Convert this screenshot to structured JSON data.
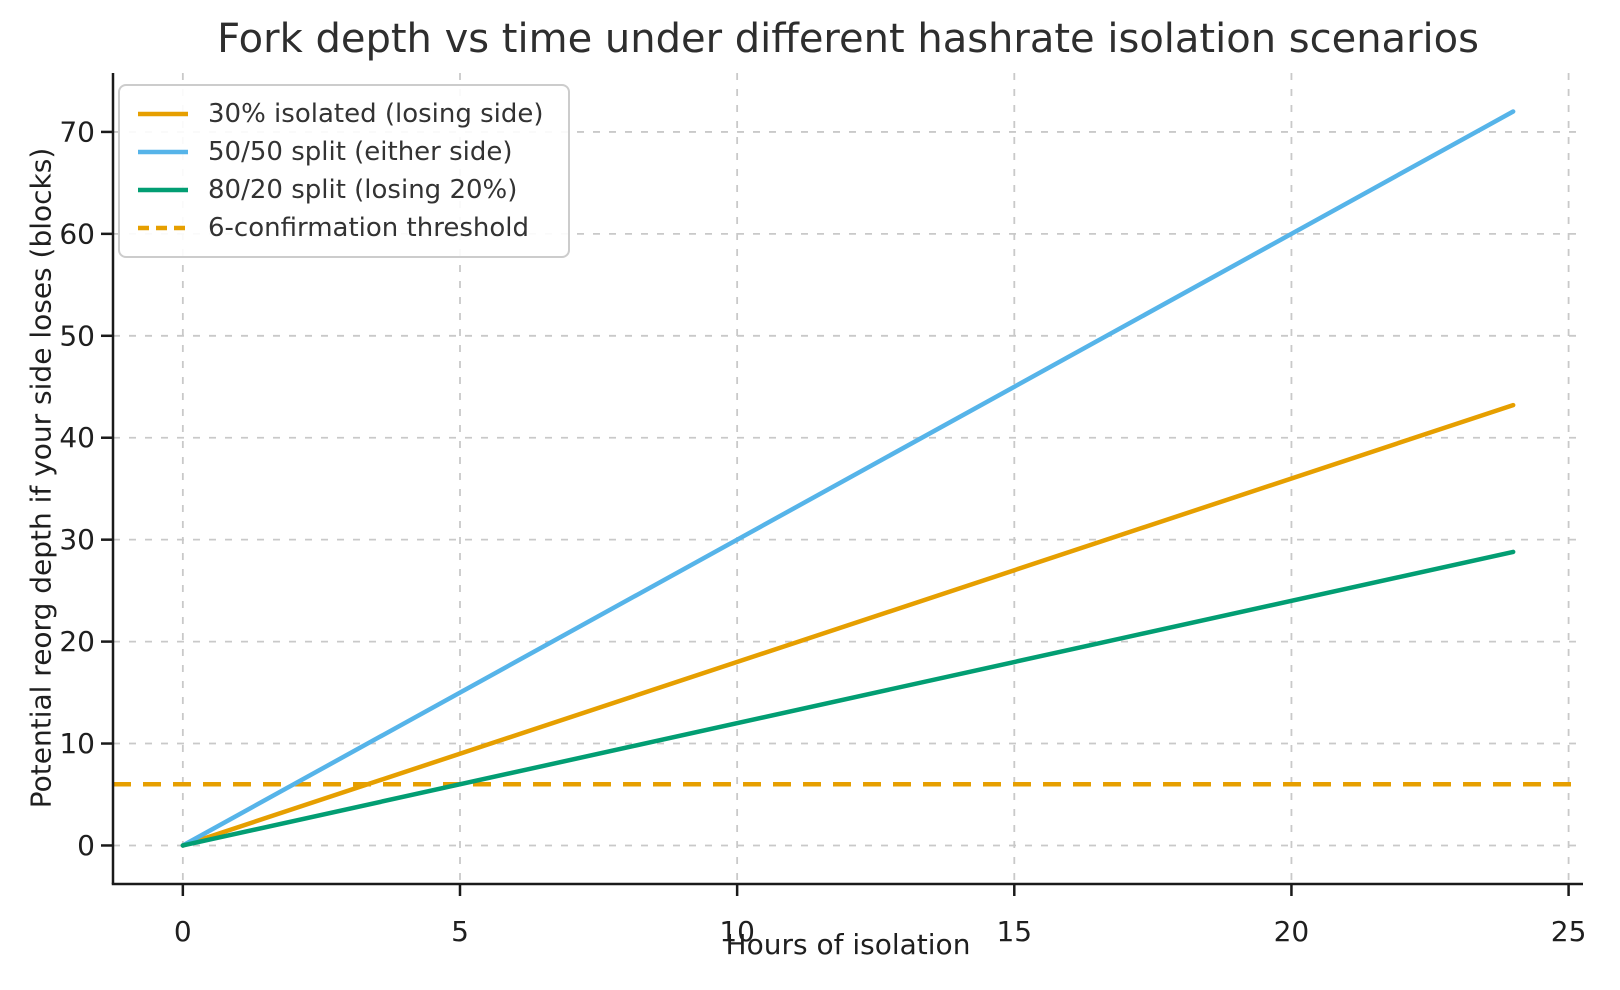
{
  "figure": {
    "background": "#ffffff"
  },
  "chart_data": {
    "type": "line",
    "title": "Fork depth vs time under different hashrate isolation scenarios",
    "xlabel": "Hours of isolation",
    "ylabel": "Potential reorg depth if your side loses (blocks)",
    "xlim": [
      -1.26,
      25.26
    ],
    "ylim": [
      -3.78,
      75.78
    ],
    "xticks": [
      0,
      5,
      10,
      15,
      20,
      25
    ],
    "yticks": [
      0,
      10,
      20,
      30,
      40,
      50,
      60,
      70
    ],
    "grid": true,
    "legend_position": "upper-left",
    "series": [
      {
        "name": "30% isolated (losing side)",
        "color": "#E69F00",
        "style": "solid",
        "x": [
          0,
          24
        ],
        "y": [
          0,
          43.2
        ]
      },
      {
        "name": "50/50 split (either side)",
        "color": "#56B4E9",
        "style": "solid",
        "x": [
          0,
          24
        ],
        "y": [
          0,
          72
        ]
      },
      {
        "name": "80/20 split (losing 20%)",
        "color": "#029E73",
        "style": "solid",
        "x": [
          0,
          24
        ],
        "y": [
          0,
          28.8
        ]
      }
    ],
    "threshold": {
      "name": "6-confirmation threshold",
      "color": "#E69F00",
      "style": "dashed",
      "y": 6
    }
  },
  "style": {
    "grid_color": "#c9c9c9",
    "spine_color": "#1a1a1a",
    "tick_text_color": "#1f1f1f",
    "legend_border_color": "#cccccc"
  }
}
